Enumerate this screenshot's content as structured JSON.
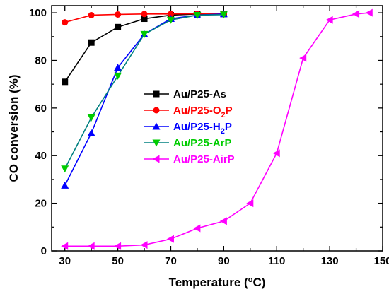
{
  "chart_data": {
    "type": "line",
    "title": "",
    "xlabel": {
      "main": "Temperature (",
      "sup": "o",
      "tail": "C)"
    },
    "ylabel": "CO conversion (%)",
    "xlim": [
      25,
      150
    ],
    "ylim": [
      0,
      103
    ],
    "xticks": [
      30,
      50,
      70,
      90,
      110,
      130,
      150
    ],
    "xticks_minor": [
      40,
      60,
      80,
      100,
      120,
      140
    ],
    "yticks": [
      0,
      20,
      40,
      60,
      80,
      100
    ],
    "legend_position": "center-left",
    "grid": false,
    "series": [
      {
        "name": "Au/P25-As",
        "legend_parts": {
          "main": "Au/P25-As",
          "sub": "",
          "tail": ""
        },
        "color": "#000000",
        "marker": "square",
        "x": [
          30,
          40,
          50,
          60,
          70,
          80,
          90
        ],
        "y": [
          71,
          87.5,
          94,
          97.5,
          99,
          99.5,
          99.5
        ]
      },
      {
        "name": "Au/P25-O2P",
        "legend_parts": {
          "main": "Au/P25-O",
          "sub": "2",
          "tail": "P"
        },
        "color": "#ff0000",
        "marker": "circle",
        "x": [
          30,
          40,
          50,
          60,
          70,
          80,
          90
        ],
        "y": [
          96,
          99,
          99.3,
          99.5,
          99.5,
          99.6,
          99.6
        ]
      },
      {
        "name": "Au/P25-H2P",
        "legend_parts": {
          "main": "Au/P25-H",
          "sub": "2",
          "tail": "P"
        },
        "color": "#0000ff",
        "marker": "triangle-up",
        "x": [
          30,
          40,
          50,
          60,
          70,
          80,
          90
        ],
        "y": [
          27.5,
          49.5,
          77,
          91,
          97.5,
          99,
          99.5
        ]
      },
      {
        "name": "Au/P25-ArP",
        "legend_parts": {
          "main": "Au/P25-ArP",
          "sub": "",
          "tail": ""
        },
        "color": "#00cc00",
        "line_color": "#008080",
        "marker": "triangle-down",
        "x": [
          30,
          40,
          50,
          60,
          70,
          80,
          90
        ],
        "y": [
          34.5,
          56,
          73.5,
          91,
          97,
          99,
          99.2
        ]
      },
      {
        "name": "Au/P25-AirP",
        "legend_parts": {
          "main": "Au/P25-AirP",
          "sub": "",
          "tail": ""
        },
        "color": "#ff00ff",
        "marker": "triangle-left",
        "x": [
          30,
          40,
          50,
          60,
          70,
          80,
          90,
          100,
          110,
          120,
          130,
          140,
          145
        ],
        "y": [
          2,
          2,
          2,
          2.5,
          5,
          9.5,
          12.5,
          20,
          41,
          81,
          97,
          99.5,
          100
        ]
      }
    ]
  }
}
